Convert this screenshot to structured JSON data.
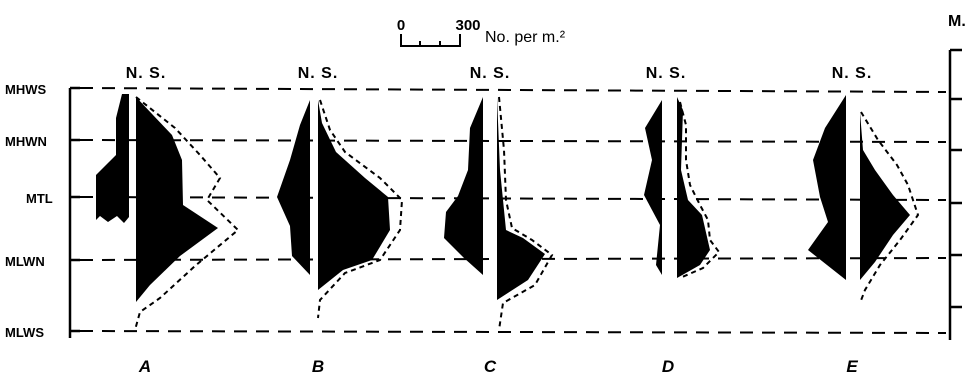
{
  "scale_bar": {
    "start_label": "0",
    "end_label": "300",
    "units_label": "No. per m.²"
  },
  "right_axis_label": "M.",
  "tide_levels": [
    {
      "key": "mhws",
      "label": "MHWS"
    },
    {
      "key": "mhwn",
      "label": "MHWN"
    },
    {
      "key": "mtl",
      "label": "MTL"
    },
    {
      "key": "mlwn",
      "label": "MLWN"
    },
    {
      "key": "mlws",
      "label": "MLWS"
    }
  ],
  "sites": [
    {
      "key": "a",
      "label": "A",
      "annotation": "N. S."
    },
    {
      "key": "b",
      "label": "B",
      "annotation": "N. S."
    },
    {
      "key": "c",
      "label": "C",
      "annotation": "N. S."
    },
    {
      "key": "d",
      "label": "D",
      "annotation": "N. S."
    },
    {
      "key": "e",
      "label": "E",
      "annotation": "N. S."
    }
  ],
  "colors": {
    "ink": "#000000",
    "background": "#ffffff"
  }
}
